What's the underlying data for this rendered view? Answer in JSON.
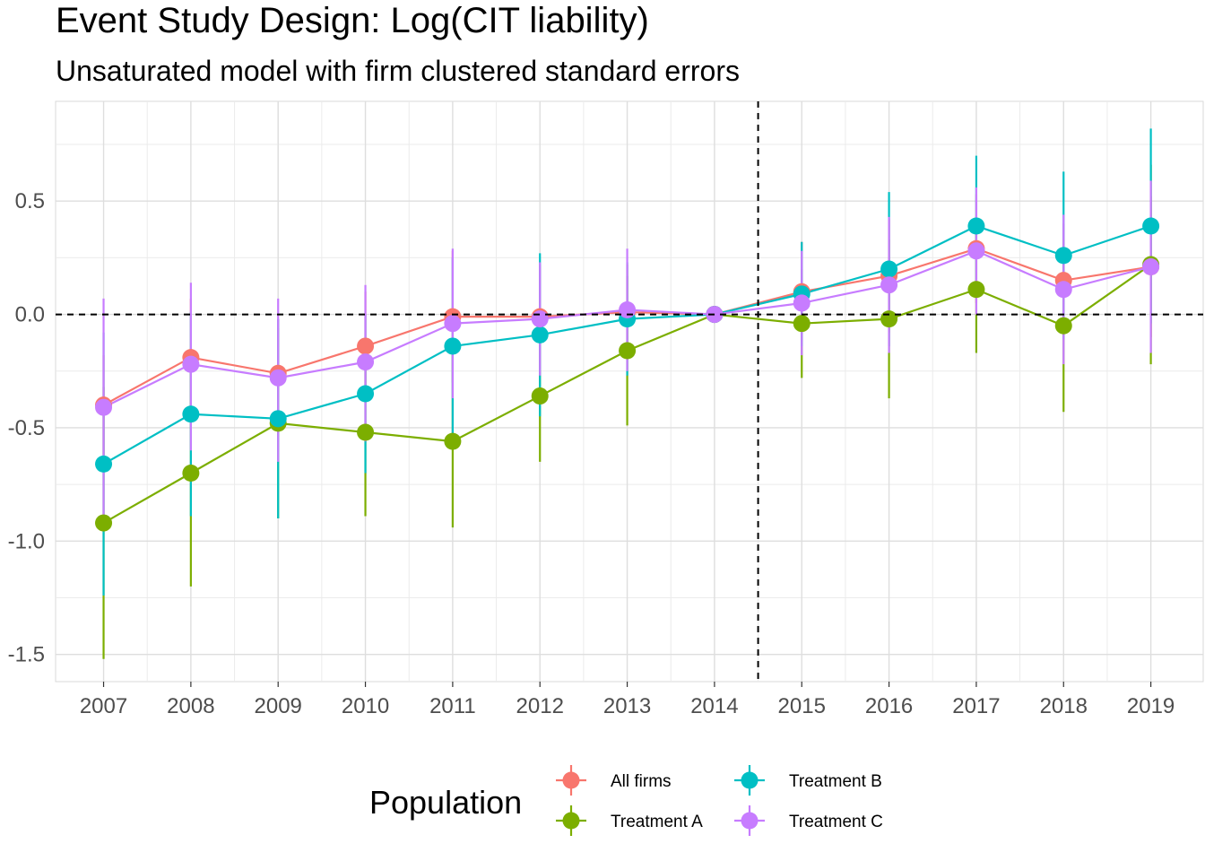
{
  "chart_data": {
    "type": "line",
    "title": "Event Study Design: Log(CIT liability)",
    "subtitle": "Unsaturated model with firm clustered standard errors",
    "xlabel": "",
    "ylabel": "",
    "x": [
      2007,
      2008,
      2009,
      2010,
      2011,
      2012,
      2013,
      2014,
      2015,
      2016,
      2017,
      2018,
      2019
    ],
    "xlim": [
      2006.45,
      2019.6
    ],
    "ylim": [
      -1.62,
      0.94
    ],
    "yticks": [
      0.5,
      0.0,
      -0.5,
      -1.0,
      -1.5
    ],
    "ytick_labels": [
      "0.5",
      "0.0",
      "-0.5",
      "-1.0",
      "-1.5"
    ],
    "reference_lines": {
      "hline_y": 0,
      "vline_x": 2014.5,
      "style": "dashed"
    },
    "grid": true,
    "legend": {
      "title": "Population",
      "position": "bottom"
    },
    "series": [
      {
        "name": "All firms",
        "color": "#F8766D",
        "values": [
          -0.4,
          -0.19,
          -0.26,
          -0.14,
          -0.01,
          -0.01,
          0.01,
          0.0,
          0.1,
          0.17,
          0.29,
          0.15,
          0.21
        ],
        "lower": [
          -0.62,
          -0.45,
          -0.5,
          -0.38,
          -0.3,
          -0.24,
          -0.2,
          0.0,
          -0.12,
          -0.08,
          0.05,
          -0.1,
          -0.1
        ],
        "upper": [
          -0.18,
          0.07,
          -0.02,
          0.1,
          0.28,
          0.22,
          0.22,
          0.0,
          0.32,
          0.42,
          0.53,
          0.4,
          0.52
        ]
      },
      {
        "name": "Treatment A",
        "color": "#7CAE00",
        "values": [
          -0.92,
          -0.7,
          -0.48,
          -0.52,
          -0.56,
          -0.36,
          -0.16,
          0.0,
          -0.04,
          -0.02,
          0.11,
          -0.05,
          0.22
        ],
        "lower": [
          -1.52,
          -1.2,
          -0.9,
          -0.89,
          -0.94,
          -0.65,
          -0.49,
          0.0,
          -0.28,
          -0.37,
          -0.17,
          -0.43,
          -0.22
        ],
        "upper": [
          -0.32,
          -0.2,
          -0.06,
          -0.15,
          -0.18,
          -0.07,
          0.17,
          0.0,
          0.2,
          0.33,
          0.39,
          0.33,
          0.66
        ]
      },
      {
        "name": "Treatment B",
        "color": "#00BFC4",
        "values": [
          -0.66,
          -0.44,
          -0.46,
          -0.35,
          -0.14,
          -0.09,
          -0.02,
          0.0,
          0.09,
          0.2,
          0.39,
          0.26,
          0.39
        ],
        "lower": [
          -1.24,
          -0.89,
          -0.9,
          -0.7,
          -0.53,
          -0.45,
          -0.27,
          0.0,
          -0.14,
          -0.14,
          0.08,
          -0.11,
          -0.04
        ],
        "upper": [
          -0.08,
          0.01,
          -0.02,
          0.0,
          0.25,
          0.27,
          0.23,
          0.0,
          0.32,
          0.54,
          0.7,
          0.63,
          0.82
        ]
      },
      {
        "name": "Treatment C",
        "color": "#C77CFF",
        "values": [
          -0.41,
          -0.22,
          -0.28,
          -0.21,
          -0.04,
          -0.02,
          0.02,
          0.0,
          0.05,
          0.13,
          0.28,
          0.11,
          0.21
        ],
        "lower": [
          -0.89,
          -0.6,
          -0.65,
          -0.56,
          -0.37,
          -0.27,
          -0.25,
          0.0,
          -0.18,
          -0.17,
          0.0,
          -0.22,
          -0.17
        ],
        "upper": [
          0.07,
          0.14,
          0.07,
          0.13,
          0.29,
          0.23,
          0.29,
          0.0,
          0.28,
          0.43,
          0.56,
          0.44,
          0.59
        ]
      }
    ]
  }
}
